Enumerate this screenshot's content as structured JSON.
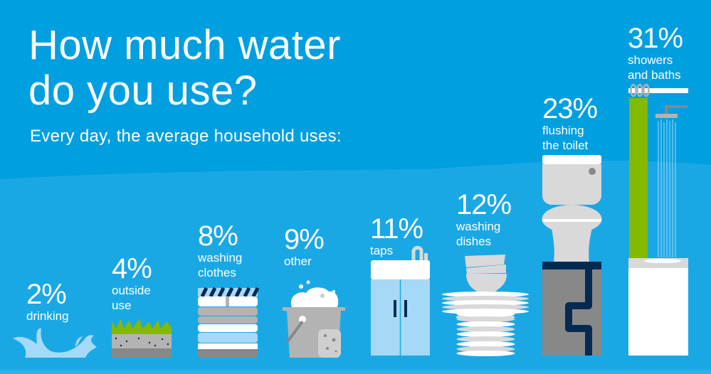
{
  "header": {
    "title_line1": "How much water",
    "title_line2": "do you use?",
    "subtitle": "Every day, the average household uses:"
  },
  "colors": {
    "background": "#009fe0",
    "wave": "#1aa8e5",
    "grass": "#84b900",
    "navy": "#052a52",
    "light_blue": "#a6d9f7",
    "grey": "#b3b3b3",
    "dark_grey": "#888888",
    "white": "#ffffff"
  },
  "chart_data": {
    "type": "bar",
    "title": "How much water do you use?",
    "subtitle": "Every day, the average household uses:",
    "unit": "%",
    "categories": [
      "drinking",
      "outside use",
      "washing clothes",
      "other",
      "taps",
      "washing dishes",
      "flushing the toilet",
      "showers and baths"
    ],
    "values": [
      2,
      4,
      8,
      9,
      11,
      12,
      23,
      31
    ],
    "labels": [
      "2%",
      "4%",
      "8%",
      "9%",
      "11%",
      "12%",
      "23%",
      "31%"
    ],
    "display_labels": [
      "drinking",
      "outside\nuse",
      "washing\nclothes",
      "other",
      "taps",
      "washing\ndishes",
      "flushing\nthe toilet",
      "showers\nand baths"
    ],
    "icons": [
      "water-splash-icon",
      "grass-soil-icon",
      "folded-clothes-icon",
      "bucket-icon",
      "sink-cabinet-icon",
      "dish-stack-icon",
      "toilet-icon",
      "shower-icon"
    ]
  }
}
